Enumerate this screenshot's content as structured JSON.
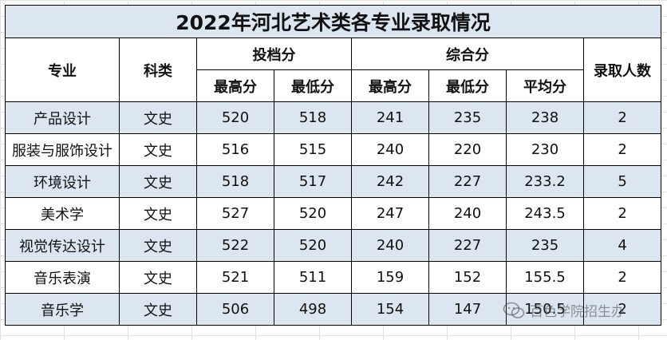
{
  "title": "2022年河北艺术类各专业录取情况",
  "headers": {
    "major": "专业",
    "category": "科类",
    "file_score": "投档分",
    "composite_score": "综合分",
    "admitted": "录取人数",
    "max": "最高分",
    "min": "最低分",
    "avg": "平均分"
  },
  "rows": [
    {
      "major": "产品设计",
      "category": "文史",
      "file_max": "520",
      "file_min": "518",
      "comp_max": "241",
      "comp_min": "235",
      "comp_avg": "238",
      "admitted": "2"
    },
    {
      "major": "服装与服饰设计",
      "category": "文史",
      "file_max": "516",
      "file_min": "515",
      "comp_max": "240",
      "comp_min": "220",
      "comp_avg": "230",
      "admitted": "2"
    },
    {
      "major": "环境设计",
      "category": "文史",
      "file_max": "518",
      "file_min": "517",
      "comp_max": "242",
      "comp_min": "227",
      "comp_avg": "233.2",
      "admitted": "5"
    },
    {
      "major": "美术学",
      "category": "文史",
      "file_max": "527",
      "file_min": "520",
      "comp_max": "247",
      "comp_min": "240",
      "comp_avg": "243.5",
      "admitted": "2"
    },
    {
      "major": "视觉传达设计",
      "category": "文史",
      "file_max": "522",
      "file_min": "520",
      "comp_max": "240",
      "comp_min": "227",
      "comp_avg": "235",
      "admitted": "4"
    },
    {
      "major": "音乐表演",
      "category": "文史",
      "file_max": "521",
      "file_min": "511",
      "comp_max": "159",
      "comp_min": "152",
      "comp_avg": "155.5",
      "admitted": "2"
    },
    {
      "major": "音乐学",
      "category": "文史",
      "file_max": "506",
      "file_min": "498",
      "comp_max": "154",
      "comp_min": "147",
      "comp_avg": "150.5",
      "admitted": "2"
    }
  ],
  "watermark": {
    "text": "百色学院招生办",
    "icon": "wechat-icon"
  },
  "colors": {
    "shade": "#dce6f1",
    "border": "#000000"
  }
}
